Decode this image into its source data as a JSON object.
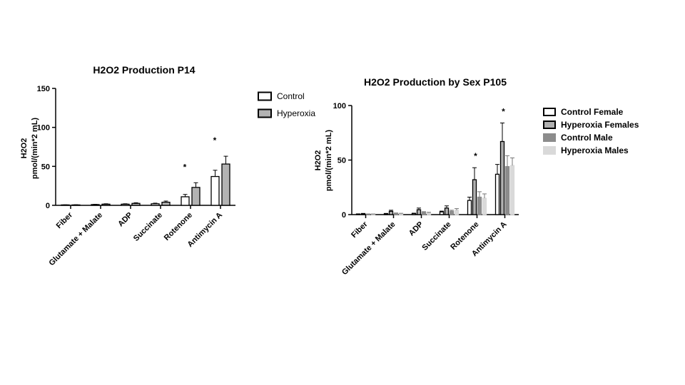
{
  "chart_data": [
    {
      "type": "bar",
      "title": "H2O2 Production P14",
      "ylabel_line1": "H2O2",
      "ylabel_line2": "pmol/(min*2 mL)",
      "xlabel": "",
      "ylim": [
        0,
        150
      ],
      "yticks": [
        0,
        50,
        100,
        150
      ],
      "categories": [
        "Fiber",
        "Glutamate + Malate",
        "ADP",
        "Succinate",
        "Rotenone",
        "Antimycin A"
      ],
      "series": [
        {
          "name": "Control",
          "values": [
            0.5,
            1.0,
            1.5,
            2.0,
            11,
            37
          ],
          "errors": [
            0.2,
            0.3,
            0.5,
            0.8,
            3,
            8
          ],
          "fill": "#ffffff",
          "stroke": "#000000"
        },
        {
          "name": "Hyperoxia",
          "values": [
            0.5,
            1.5,
            2.5,
            4.0,
            23,
            53
          ],
          "errors": [
            0.3,
            0.5,
            0.8,
            1.5,
            6,
            10
          ],
          "fill": "#b3b3b3",
          "stroke": "#000000"
        }
      ],
      "annotations": [
        {
          "category": "Rotenone",
          "text": "*"
        },
        {
          "category": "Antimycin A",
          "text": "*"
        }
      ],
      "legend_position": "right"
    },
    {
      "type": "bar",
      "title": "H2O2 Production by Sex P105",
      "ylabel_line1": "H2O2",
      "ylabel_line2": "pmol/(min*2 mL)",
      "xlabel": "",
      "ylim": [
        0,
        100
      ],
      "yticks": [
        0,
        50,
        100
      ],
      "categories": [
        "Fiber",
        "Glutamate + Malate",
        "ADP",
        "Succinate",
        "Rotenone",
        "Antimycin A"
      ],
      "series": [
        {
          "name": "Control Female",
          "values": [
            0.5,
            0.8,
            1.0,
            2.5,
            13,
            37
          ],
          "errors": [
            0.2,
            0.3,
            0.3,
            0.7,
            3,
            9
          ],
          "fill": "#ffffff",
          "stroke": "#000000"
        },
        {
          "name": "Hyperoxia Females",
          "values": [
            0.8,
            3.0,
            4.5,
            6.0,
            32,
            67
          ],
          "errors": [
            0.3,
            1.0,
            1.5,
            2.0,
            11,
            17
          ],
          "fill": "#b0b0b0",
          "stroke": "#000000"
        },
        {
          "name": "Control Male",
          "values": [
            0.4,
            1.0,
            2.0,
            3.0,
            16,
            44
          ],
          "errors": [
            0.2,
            0.5,
            0.7,
            1.0,
            5,
            10
          ],
          "fill": "#8c8c8c",
          "stroke": "#8c8c8c"
        },
        {
          "name": "Hyperoxia Males",
          "values": [
            0.4,
            0.8,
            1.5,
            4.0,
            15,
            45
          ],
          "errors": [
            0.2,
            0.4,
            0.6,
            1.5,
            4,
            7
          ],
          "fill": "#d9d9d9",
          "stroke": "#d9d9d9"
        }
      ],
      "annotations": [
        {
          "category": "Rotenone",
          "text": "*"
        },
        {
          "category": "Antimycin A",
          "text": "*"
        }
      ],
      "legend_position": "right"
    }
  ]
}
